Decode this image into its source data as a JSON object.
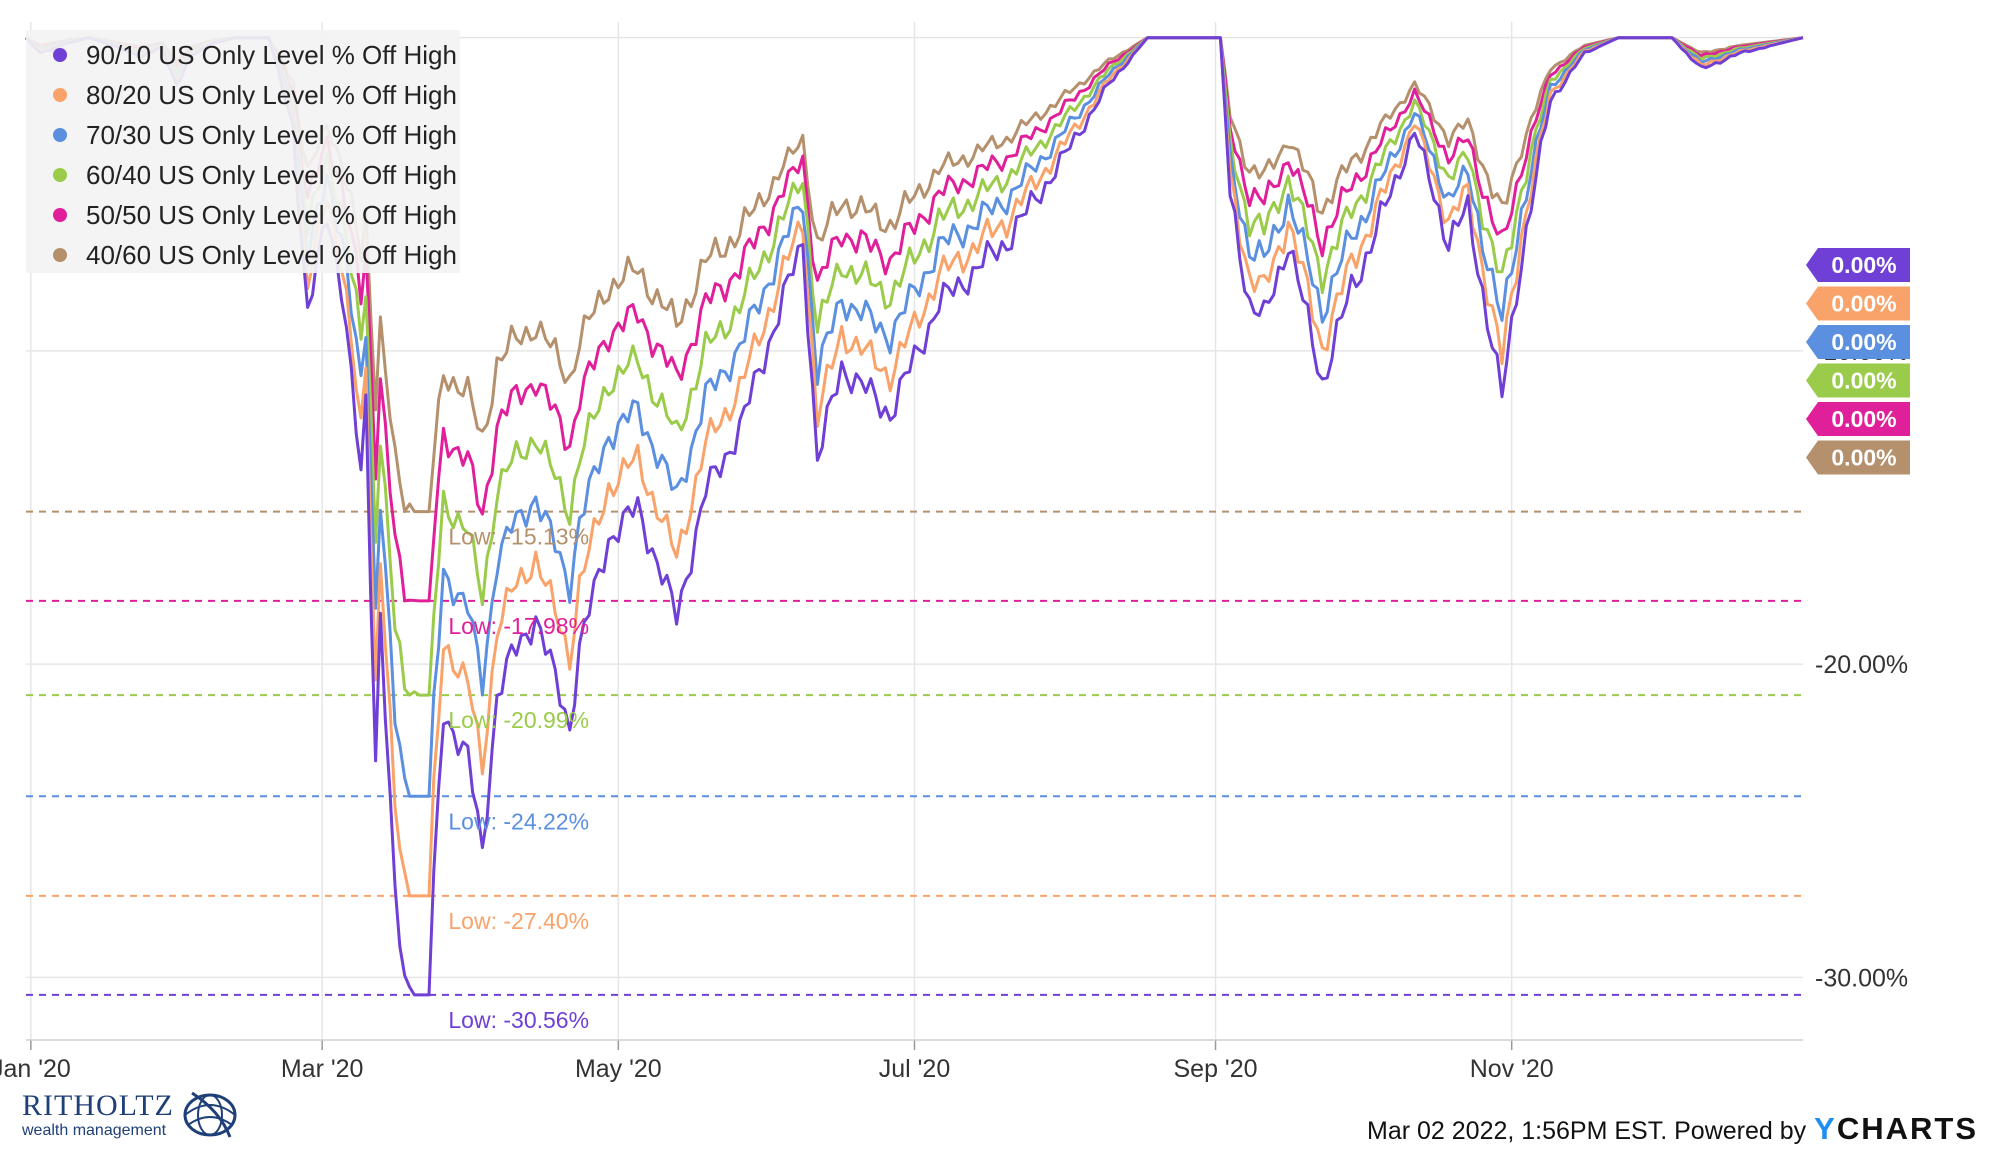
{
  "chart_data": {
    "type": "line",
    "title": "",
    "xlabel": "",
    "ylabel": "",
    "x_range": [
      "2019-12-31",
      "2020-12-31"
    ],
    "ylim": [
      -32,
      0.5
    ],
    "y_ticks": [
      "-10.00%",
      "-20.00%",
      "-30.00%"
    ],
    "x_ticks": [
      {
        "label": "Jan '20",
        "date": "2020-01-01"
      },
      {
        "label": "Mar '20",
        "date": "2020-03-01"
      },
      {
        "label": "May '20",
        "date": "2020-05-01"
      },
      {
        "label": "Jul '20",
        "date": "2020-07-01"
      },
      {
        "label": "Sep '20",
        "date": "2020-09-01"
      },
      {
        "label": "Nov '20",
        "date": "2020-11-01"
      }
    ],
    "grid": true,
    "legend_position": "top-left",
    "series": [
      {
        "name": "90/10 US Only Level % Off High",
        "color": "#6f3fd6",
        "low": -30.56,
        "low_label": "Low: -30.56%",
        "last_label": "0.00%"
      },
      {
        "name": "80/20 US Only Level % Off High",
        "color": "#f9a36b",
        "low": -27.4,
        "low_label": "Low: -27.40%",
        "last_label": "0.00%"
      },
      {
        "name": "70/30 US Only Level % Off High",
        "color": "#5b8fe0",
        "low": -24.22,
        "low_label": "Low: -24.22%",
        "last_label": "0.00%"
      },
      {
        "name": "60/40 US Only Level % Off High",
        "color": "#9acb4a",
        "low": -20.99,
        "low_label": "Low: -20.99%",
        "last_label": "0.00%"
      },
      {
        "name": "50/50 US Only Level % Off High",
        "color": "#e0209a",
        "low": -17.98,
        "low_label": "Low: -17.98%",
        "last_label": "0.00%"
      },
      {
        "name": "40/60 US Only Level % Off High",
        "color": "#b5906c",
        "low": -15.13,
        "low_label": "Low: -15.13%",
        "last_label": "0.00%"
      }
    ],
    "base_curve": [
      [
        "2019-12-31",
        0.0
      ],
      [
        "2020-01-03",
        -0.5
      ],
      [
        "2020-01-08",
        -0.2
      ],
      [
        "2020-01-13",
        0.0
      ],
      [
        "2020-01-24",
        -0.6
      ],
      [
        "2020-01-28",
        -0.3
      ],
      [
        "2020-01-31",
        -1.5
      ],
      [
        "2020-02-03",
        -0.6
      ],
      [
        "2020-02-07",
        -0.2
      ],
      [
        "2020-02-12",
        0.0
      ],
      [
        "2020-02-19",
        0.0
      ],
      [
        "2020-02-24",
        -2.8
      ],
      [
        "2020-02-27",
        -9.0
      ],
      [
        "2020-03-02",
        -5.5
      ],
      [
        "2020-03-05",
        -8.0
      ],
      [
        "2020-03-09",
        -14.0
      ],
      [
        "2020-03-10",
        -11.5
      ],
      [
        "2020-03-12",
        -23.0
      ],
      [
        "2020-03-13",
        -18.5
      ],
      [
        "2020-03-16",
        -27.5
      ],
      [
        "2020-03-18",
        -30.0
      ],
      [
        "2020-03-20",
        -30.56
      ],
      [
        "2020-03-23",
        -31.8
      ],
      [
        "2020-03-24",
        -27.0
      ],
      [
        "2020-03-26",
        -21.5
      ],
      [
        "2020-03-31",
        -23.0
      ],
      [
        "2020-04-03",
        -26.0
      ],
      [
        "2020-04-06",
        -21.0
      ],
      [
        "2020-04-09",
        -19.8
      ],
      [
        "2020-04-14",
        -18.5
      ],
      [
        "2020-04-21",
        -22.0
      ],
      [
        "2020-04-23",
        -19.5
      ],
      [
        "2020-04-29",
        -16.0
      ],
      [
        "2020-05-05",
        -15.0
      ],
      [
        "2020-05-13",
        -18.5
      ],
      [
        "2020-05-19",
        -14.5
      ],
      [
        "2020-05-26",
        -12.5
      ],
      [
        "2020-06-08",
        -6.5
      ],
      [
        "2020-06-11",
        -13.5
      ],
      [
        "2020-06-16",
        -10.5
      ],
      [
        "2020-06-26",
        -12.0
      ],
      [
        "2020-07-06",
        -8.5
      ],
      [
        "2020-07-20",
        -6.5
      ],
      [
        "2020-07-31",
        -4.0
      ],
      [
        "2020-08-10",
        -1.5
      ],
      [
        "2020-08-18",
        0.0
      ],
      [
        "2020-09-02",
        0.0
      ],
      [
        "2020-09-04",
        -5.0
      ],
      [
        "2020-09-08",
        -8.5
      ],
      [
        "2020-09-11",
        -9.0
      ],
      [
        "2020-09-16",
        -6.5
      ],
      [
        "2020-09-23",
        -11.0
      ],
      [
        "2020-09-29",
        -8.0
      ],
      [
        "2020-10-02",
        -7.0
      ],
      [
        "2020-10-12",
        -3.0
      ],
      [
        "2020-10-19",
        -6.5
      ],
      [
        "2020-10-23",
        -5.5
      ],
      [
        "2020-10-30",
        -11.5
      ],
      [
        "2020-11-03",
        -7.0
      ],
      [
        "2020-11-09",
        -2.0
      ],
      [
        "2020-11-16",
        -0.5
      ],
      [
        "2020-11-23",
        0.0
      ],
      [
        "2020-12-04",
        0.0
      ],
      [
        "2020-12-10",
        -1.0
      ],
      [
        "2020-12-18",
        -0.5
      ],
      [
        "2020-12-31",
        0.0
      ]
    ]
  },
  "footer": {
    "timestamp": "Mar 02 2022, 1:56PM EST. Powered by",
    "ycharts_y": "Y",
    "ycharts_rest": "CHARTS"
  },
  "brand": {
    "name": "RITHOLTZ",
    "subtitle": "wealth management",
    "logo_icon": "globe-swirl-icon"
  }
}
